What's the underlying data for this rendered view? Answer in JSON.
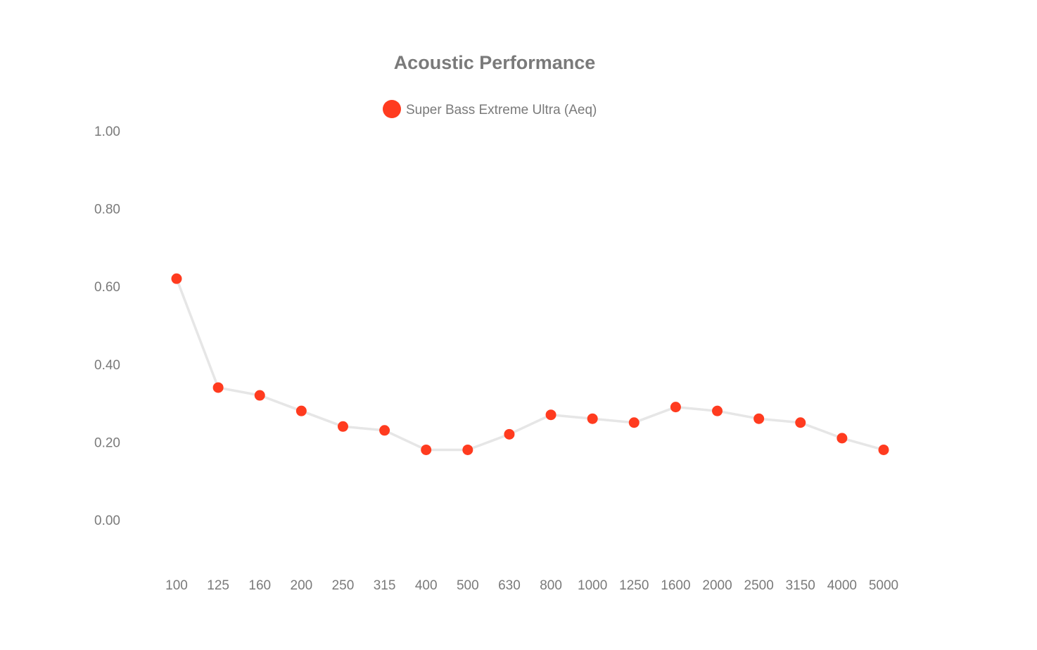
{
  "chart_data": {
    "type": "line",
    "title": "Acoustic Performance",
    "xlabel": "",
    "ylabel": "",
    "categories": [
      "100",
      "125",
      "160",
      "200",
      "250",
      "315",
      "400",
      "500",
      "630",
      "800",
      "1000",
      "1250",
      "1600",
      "2000",
      "2500",
      "3150",
      "4000",
      "5000"
    ],
    "series": [
      {
        "name": "Super Bass Extreme Ultra (Aeq)",
        "values": [
          0.62,
          0.34,
          0.32,
          0.28,
          0.24,
          0.23,
          0.18,
          0.18,
          0.22,
          0.27,
          0.26,
          0.25,
          0.29,
          0.28,
          0.26,
          0.25,
          0.21,
          0.18
        ]
      }
    ],
    "yticks": [
      "1.00",
      "0.80",
      "0.60",
      "0.40",
      "0.20",
      "0.00"
    ],
    "ylim": [
      0,
      1
    ],
    "grid": false,
    "legend_position": "top-center",
    "colors": {
      "marker": "#ff3b1f",
      "line": "#e6e6e6",
      "text": "#7a7a7a"
    }
  }
}
